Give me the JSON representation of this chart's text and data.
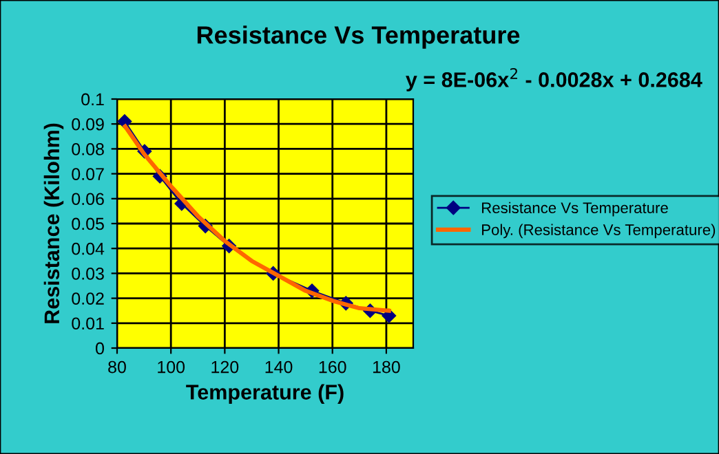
{
  "chart_data": {
    "type": "line",
    "title": "Resistance Vs Temperature",
    "xlabel": "Temperature (F)",
    "ylabel": "Resistance (Kilohm)",
    "annotations": [
      "y = 8E-06x$^{2}$ - 0.0028x + 0.2684"
    ],
    "x": [
      82.8,
      90.2,
      95.9,
      104,
      112.8,
      121.6,
      138,
      152.4,
      165,
      174,
      181
    ],
    "series": [
      {
        "name": "Resistance Vs Temperature",
        "color": "#000080",
        "marker": "diamond",
        "values": [
          0.091,
          0.079,
          0.069,
          0.058,
          0.049,
          0.041,
          0.03,
          0.023,
          0.018,
          0.015,
          0.013
        ]
      },
      {
        "name": "Poly. (Resistance Vs Temperature)",
        "color": "#ff6600",
        "marker": "none",
        "x": [
          83,
          90,
          100,
          110,
          120,
          130,
          140,
          150,
          160,
          170,
          181
        ],
        "values": [
          0.089,
          0.078,
          0.065,
          0.053,
          0.043,
          0.035,
          0.029,
          0.023,
          0.019,
          0.016,
          0.015
        ]
      }
    ],
    "xlim": [
      80,
      190
    ],
    "xticks": [
      80,
      100,
      120,
      140,
      160,
      180
    ],
    "ylim": [
      0,
      0.1
    ],
    "yticks": [
      0,
      0.01,
      0.02,
      0.03,
      0.04,
      0.05,
      0.06,
      0.07,
      0.08,
      0.09,
      0.1
    ],
    "grid": true,
    "legend": "right",
    "line_style": "solid"
  }
}
